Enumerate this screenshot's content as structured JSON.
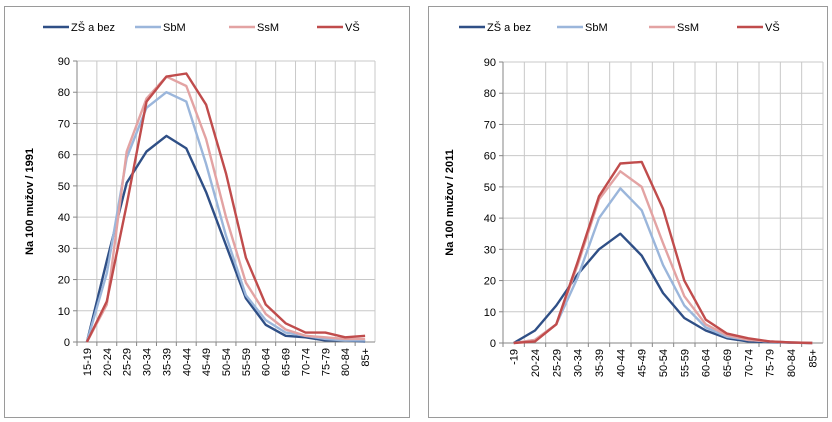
{
  "chart_data": [
    {
      "type": "line",
      "title": "",
      "xlabel": "",
      "ylabel": "Na 100 mužov / 1991",
      "ylim": [
        0,
        90
      ],
      "yticks": [
        0,
        10,
        20,
        30,
        40,
        50,
        60,
        70,
        80,
        90
      ],
      "grid": true,
      "legend_position": "top",
      "categories": [
        "15-19",
        "20-24",
        "25-29",
        "30-34",
        "35-39",
        "40-44",
        "45-49",
        "50-54",
        "55-59",
        "60-64",
        "65-69",
        "70-74",
        "75-79",
        "80-84",
        "85+"
      ],
      "series": [
        {
          "name": "ZŠ a bez",
          "color": "#2f4f86",
          "values": [
            0,
            26,
            51,
            61,
            66,
            62,
            48,
            31,
            14,
            5.5,
            2,
            1.5,
            0.5,
            0.5,
            0.2
          ]
        },
        {
          "name": "SbM",
          "color": "#9bb6db",
          "values": [
            0,
            22,
            59,
            75,
            80,
            77,
            57,
            34,
            15,
            7,
            3,
            2,
            1,
            0.5,
            0.5
          ]
        },
        {
          "name": "SsM",
          "color": "#e3a3a3",
          "values": [
            0,
            12,
            61,
            78,
            85,
            82,
            65,
            40,
            19,
            9,
            4,
            2,
            1.5,
            1,
            1
          ]
        },
        {
          "name": "VŠ",
          "color": "#c04c4c",
          "values": [
            0,
            13,
            44,
            77,
            85,
            86,
            76,
            54,
            27,
            12,
            6,
            3,
            3,
            1.5,
            2
          ]
        }
      ]
    },
    {
      "type": "line",
      "title": "",
      "xlabel": "",
      "ylabel": "Na 100 mužov / 2011",
      "ylim": [
        0,
        90
      ],
      "yticks": [
        0,
        10,
        20,
        30,
        40,
        50,
        60,
        70,
        80,
        90
      ],
      "grid": true,
      "legend_position": "top",
      "categories": [
        "-19",
        "20-24",
        "25-29",
        "30-34",
        "35-39",
        "40-44",
        "45-49",
        "50-54",
        "55-59",
        "60-64",
        "65-69",
        "70-74",
        "75-79",
        "80-84",
        "85+"
      ],
      "series": [
        {
          "name": "ZŠ a bez",
          "color": "#2f4f86",
          "values": [
            0,
            4,
            12,
            22,
            30,
            35,
            28,
            16,
            8,
            4,
            1.5,
            0.5,
            0.3,
            0.1,
            0
          ]
        },
        {
          "name": "SbM",
          "color": "#9bb6db",
          "values": [
            0,
            1,
            6,
            21,
            40,
            49.5,
            42.5,
            25,
            12,
            5,
            2,
            1,
            0.5,
            0.2,
            0
          ]
        },
        {
          "name": "SsM",
          "color": "#e3a3a3",
          "values": [
            0,
            1,
            6,
            25,
            46,
            55,
            50,
            32,
            15,
            6,
            2.5,
            1,
            0.5,
            0.2,
            0
          ]
        },
        {
          "name": "VŠ",
          "color": "#c04c4c",
          "values": [
            0,
            0.5,
            6,
            26,
            47,
            57.5,
            58,
            43,
            20,
            7.5,
            3,
            1.5,
            0.5,
            0.2,
            0
          ]
        }
      ]
    }
  ]
}
